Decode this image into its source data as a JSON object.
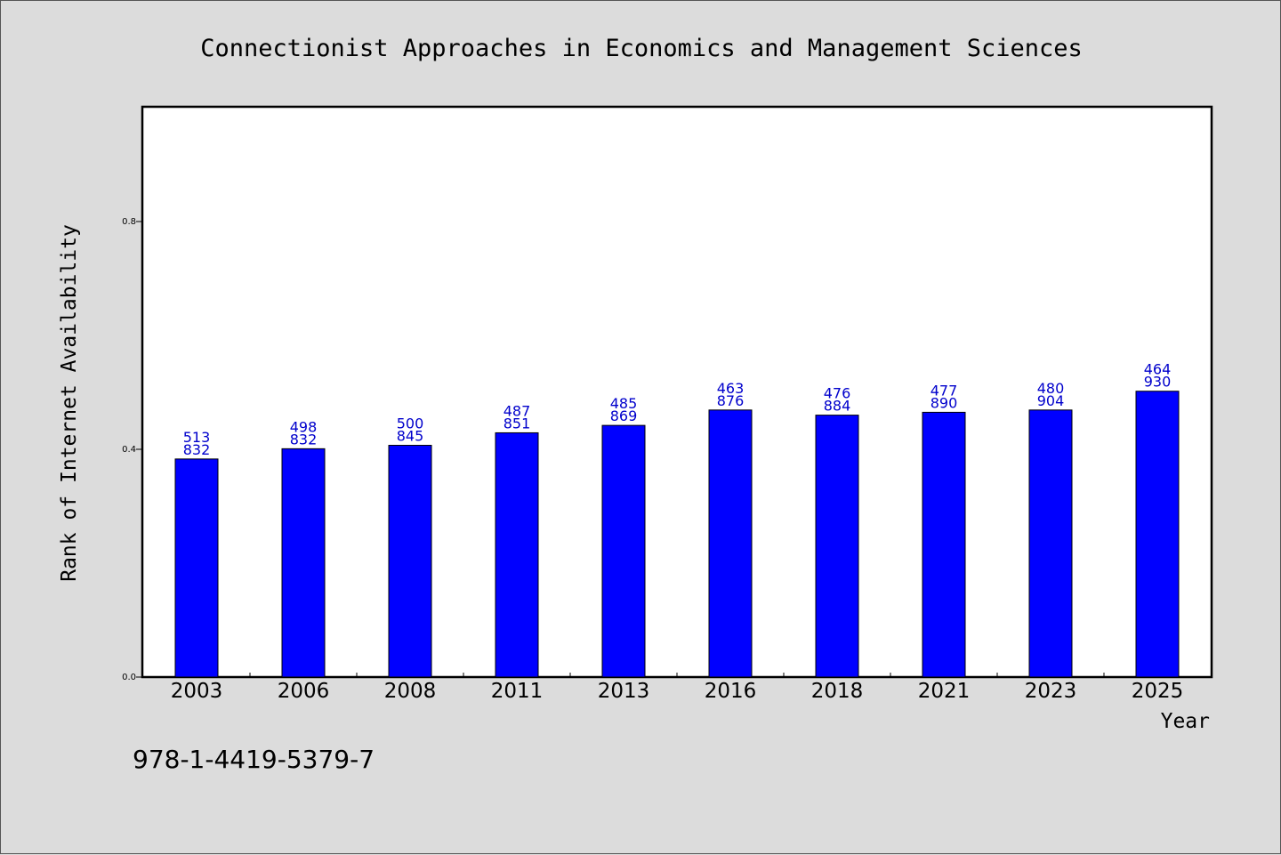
{
  "chart_data": {
    "type": "bar",
    "title": "Connectionist Approaches in Economics and Management Sciences",
    "xlabel": "Year",
    "ylabel": "Rank of Internet Availability",
    "categories": [
      "2003",
      "2006",
      "2008",
      "2011",
      "2013",
      "2016",
      "2018",
      "2021",
      "2023",
      "2025"
    ],
    "values": [
      0.383,
      0.401,
      0.407,
      0.429,
      0.442,
      0.469,
      0.46,
      0.465,
      0.469,
      0.502
    ],
    "data_labels": [
      [
        "513",
        "832"
      ],
      [
        "498",
        "832"
      ],
      [
        "500",
        "845"
      ],
      [
        "487",
        "851"
      ],
      [
        "485",
        "869"
      ],
      [
        "463",
        "876"
      ],
      [
        "476",
        "884"
      ],
      [
        "477",
        "890"
      ],
      [
        "480",
        "904"
      ],
      [
        "464",
        "930"
      ]
    ],
    "ylim": [
      0,
      1.0
    ],
    "yticks": [
      0.0,
      0.4,
      0.8
    ],
    "ytick_labels": [
      "0.0",
      "0.4",
      "0.8"
    ],
    "bar_color": "#0000ff",
    "label_color": "#0000cc",
    "grid": false,
    "legend": "none"
  },
  "footer": {
    "isbn": "978-1-4419-5379-7"
  }
}
